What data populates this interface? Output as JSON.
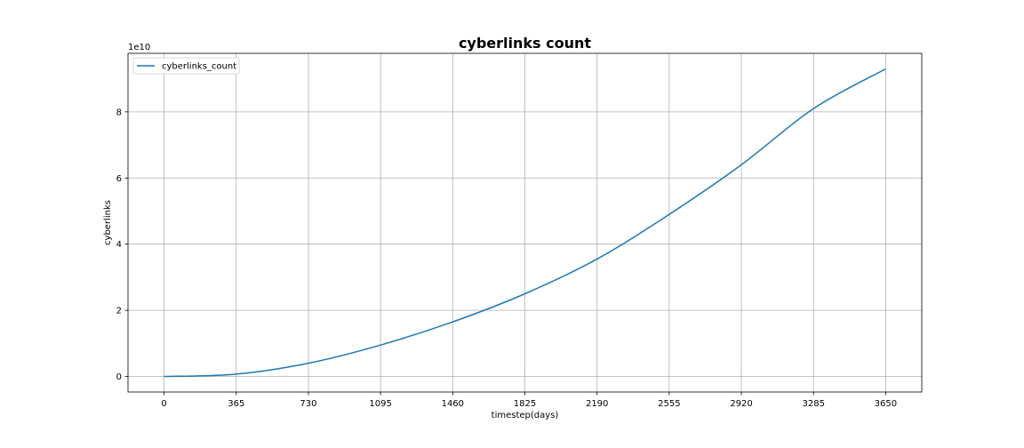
{
  "chart_data": {
    "type": "line",
    "title": "cyberlinks count",
    "xlabel": "timestep(days)",
    "ylabel": "cyberlinks",
    "y_offset_label": "1e10",
    "y_scale": 10000000000,
    "xlim": [
      -182.5,
      3832.5
    ],
    "ylim": [
      -0.47,
      9.77
    ],
    "xticks": [
      0,
      365,
      730,
      1095,
      1460,
      1825,
      2190,
      2555,
      2920,
      3285,
      3650
    ],
    "yticks": [
      0,
      2,
      4,
      6,
      8
    ],
    "grid": true,
    "legend_position": "upper left",
    "line_color": "#1f77b4",
    "series": [
      {
        "name": "cyberlinks_count",
        "x": [
          0,
          365,
          730,
          1095,
          1460,
          1825,
          2190,
          2555,
          2920,
          3285,
          3650
        ],
        "y": [
          0.0,
          0.07,
          0.4,
          0.95,
          1.65,
          2.5,
          3.55,
          4.9,
          6.4,
          8.1,
          9.3
        ]
      }
    ]
  }
}
